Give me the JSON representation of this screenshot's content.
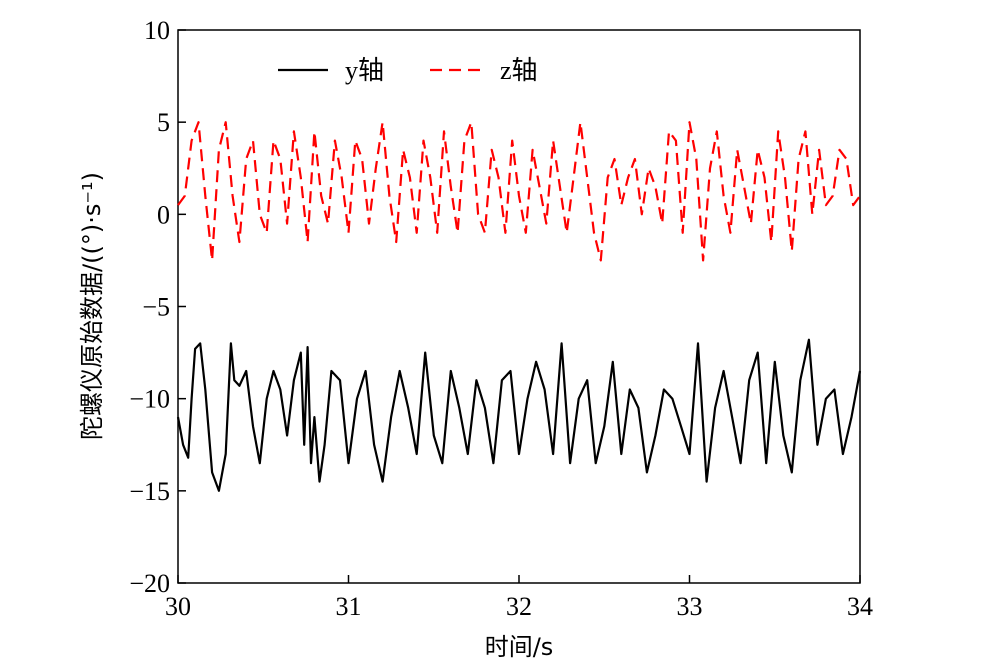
{
  "chart_data": {
    "type": "line",
    "xlabel": "时间/s",
    "ylabel": "陀螺仪原始数据/((°)·s⁻¹)",
    "xlim": [
      30,
      34
    ],
    "ylim": [
      -20,
      10
    ],
    "x_ticks": [
      "30",
      "31",
      "32",
      "33",
      "34"
    ],
    "y_ticks": [
      "10",
      "5",
      "0",
      "−5",
      "−10",
      "−15",
      "−20"
    ],
    "grid": false,
    "legend": "top-left",
    "series": [
      {
        "name": "y轴",
        "color": "#000000",
        "style": "solid",
        "x": [
          30.0,
          30.03,
          30.06,
          30.08,
          30.1,
          30.13,
          30.16,
          30.2,
          30.24,
          30.28,
          30.31,
          30.33,
          30.36,
          30.4,
          30.44,
          30.48,
          30.52,
          30.56,
          30.6,
          30.64,
          30.68,
          30.72,
          30.74,
          30.76,
          30.78,
          30.8,
          30.83,
          30.86,
          30.9,
          30.95,
          31.0,
          31.05,
          31.1,
          31.15,
          31.2,
          31.25,
          31.3,
          31.35,
          31.4,
          31.45,
          31.5,
          31.55,
          31.6,
          31.65,
          31.7,
          31.75,
          31.8,
          31.85,
          31.9,
          31.95,
          32.0,
          32.05,
          32.1,
          32.15,
          32.2,
          32.25,
          32.3,
          32.35,
          32.4,
          32.45,
          32.5,
          32.55,
          32.6,
          32.65,
          32.7,
          32.75,
          32.8,
          32.85,
          32.9,
          32.95,
          33.0,
          33.05,
          33.1,
          33.15,
          33.2,
          33.25,
          33.3,
          33.35,
          33.4,
          33.45,
          33.5,
          33.55,
          33.6,
          33.65,
          33.7,
          33.75,
          33.8,
          33.85,
          33.9,
          33.95,
          34.0
        ],
        "y": [
          -11.0,
          -12.5,
          -13.2,
          -10.0,
          -7.3,
          -7.0,
          -9.5,
          -14.0,
          -15.0,
          -13.0,
          -7.0,
          -9.0,
          -9.3,
          -8.5,
          -11.5,
          -13.5,
          -10.0,
          -8.5,
          -9.5,
          -12.0,
          -9.0,
          -7.5,
          -12.5,
          -7.2,
          -13.5,
          -11.0,
          -14.5,
          -12.5,
          -8.5,
          -9.0,
          -13.5,
          -10.0,
          -8.5,
          -12.5,
          -14.5,
          -11.0,
          -8.5,
          -10.5,
          -13.0,
          -7.5,
          -12.0,
          -13.5,
          -8.5,
          -10.5,
          -13.0,
          -9.0,
          -10.5,
          -13.5,
          -9.0,
          -8.5,
          -13.0,
          -10.0,
          -8.0,
          -9.5,
          -13.0,
          -7.0,
          -13.5,
          -10.0,
          -9.0,
          -13.5,
          -11.5,
          -8.0,
          -13.0,
          -9.5,
          -10.5,
          -14.0,
          -12.0,
          -9.5,
          -10.0,
          -11.5,
          -13.0,
          -7.0,
          -14.5,
          -10.5,
          -8.5,
          -11.0,
          -13.5,
          -9.0,
          -7.5,
          -13.5,
          -8.0,
          -12.0,
          -14.0,
          -9.0,
          -6.8,
          -12.5,
          -10.0,
          -9.5,
          -13.0,
          -11.0,
          -8.5
        ]
      },
      {
        "name": "z轴",
        "color": "#ff0000",
        "style": "dashed",
        "x": [
          30.0,
          30.04,
          30.08,
          30.12,
          30.16,
          30.2,
          30.24,
          30.28,
          30.32,
          30.36,
          30.4,
          30.44,
          30.48,
          30.52,
          30.56,
          30.6,
          30.64,
          30.68,
          30.72,
          30.76,
          30.8,
          30.84,
          30.88,
          30.92,
          30.96,
          31.0,
          31.04,
          31.08,
          31.12,
          31.16,
          31.2,
          31.24,
          31.28,
          31.32,
          31.36,
          31.4,
          31.44,
          31.48,
          31.52,
          31.56,
          31.6,
          31.64,
          31.68,
          31.72,
          31.76,
          31.8,
          31.84,
          31.88,
          31.92,
          31.96,
          32.0,
          32.04,
          32.08,
          32.12,
          32.16,
          32.2,
          32.24,
          32.28,
          32.32,
          32.36,
          32.4,
          32.44,
          32.48,
          32.52,
          32.56,
          32.6,
          32.64,
          32.68,
          32.72,
          32.76,
          32.8,
          32.84,
          32.88,
          32.92,
          32.96,
          33.0,
          33.04,
          33.08,
          33.12,
          33.16,
          33.2,
          33.24,
          33.28,
          33.32,
          33.36,
          33.4,
          33.44,
          33.48,
          33.52,
          33.56,
          33.6,
          33.64,
          33.68,
          33.72,
          33.76,
          33.8,
          33.84,
          33.88,
          33.92,
          33.96,
          34.0
        ],
        "y": [
          0.5,
          1.0,
          4.0,
          5.0,
          1.0,
          -2.5,
          3.5,
          5.0,
          1.0,
          -1.5,
          3.0,
          4.0,
          0.0,
          -1.0,
          4.0,
          3.0,
          -0.5,
          4.5,
          2.0,
          -1.5,
          4.5,
          1.0,
          -0.5,
          4.0,
          2.0,
          -1.0,
          4.0,
          3.0,
          -0.5,
          2.5,
          5.0,
          1.0,
          -1.5,
          3.5,
          2.0,
          -1.0,
          4.0,
          2.0,
          -1.0,
          4.5,
          1.5,
          -1.0,
          4.0,
          5.0,
          0.0,
          -1.0,
          3.5,
          2.0,
          -1.0,
          4.0,
          1.0,
          -1.0,
          3.5,
          1.5,
          -0.5,
          4.0,
          1.5,
          -1.0,
          2.0,
          5.0,
          2.0,
          -1.0,
          -2.5,
          2.0,
          3.0,
          0.5,
          2.0,
          3.0,
          0.0,
          2.5,
          1.5,
          -0.5,
          4.5,
          4.0,
          -1.0,
          5.0,
          3.0,
          -2.5,
          2.5,
          4.5,
          1.0,
          -1.0,
          3.5,
          1.5,
          -0.5,
          3.5,
          2.0,
          -1.5,
          4.5,
          2.0,
          -2.0,
          3.0,
          4.5,
          0.0,
          3.5,
          0.5,
          1.0,
          3.5,
          3.0,
          0.5,
          1.0
        ]
      }
    ]
  }
}
